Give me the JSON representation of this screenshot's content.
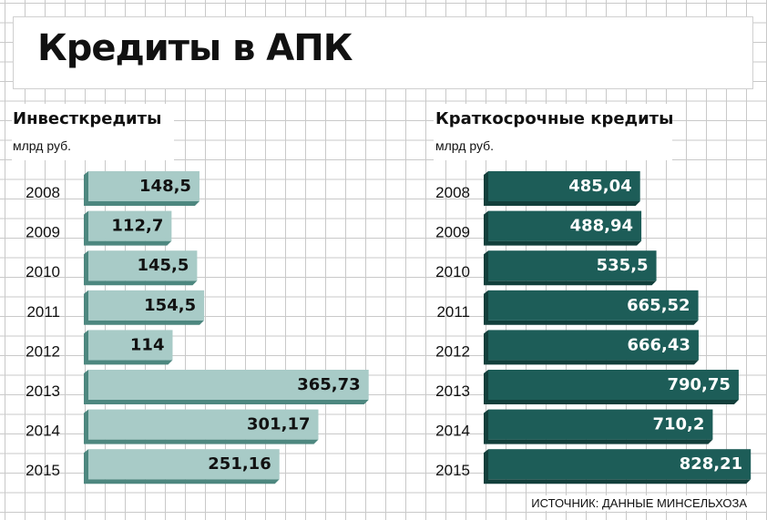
{
  "title": "Кредиты в АПК",
  "source": "ИСТОЧНИК: ДАННЫЕ МИНСЕЛЬХОЗА",
  "colors": {
    "left_face": "#a8cbc7",
    "left_side": "#4d877f",
    "right_face": "#1d5d58",
    "right_side": "#123f3b"
  },
  "chart_data": [
    {
      "type": "bar",
      "orientation": "horizontal",
      "title": "Инвесткредиты",
      "unit": "млрд руб.",
      "categories": [
        "2008",
        "2009",
        "2010",
        "2011",
        "2012",
        "2013",
        "2014",
        "2015"
      ],
      "values": [
        148.5,
        112.7,
        145.5,
        154.5,
        114,
        365.73,
        301.17,
        251.16
      ],
      "value_labels": [
        "148,5",
        "112,7",
        "145,5",
        "154,5",
        "114",
        "365,73",
        "301,17",
        "251,16"
      ],
      "grid": true
    },
    {
      "type": "bar",
      "orientation": "horizontal",
      "title": "Краткосрочные кредиты",
      "unit": "млрд руб.",
      "categories": [
        "2008",
        "2009",
        "2010",
        "2011",
        "2012",
        "2013",
        "2014",
        "2015"
      ],
      "values": [
        485.04,
        488.94,
        535.5,
        665.52,
        666.43,
        790.75,
        710.2,
        828.21
      ],
      "value_labels": [
        "485,04",
        "488,94",
        "535,5",
        "665,52",
        "666,43",
        "790,75",
        "710,2",
        "828,21"
      ],
      "grid": true
    }
  ]
}
